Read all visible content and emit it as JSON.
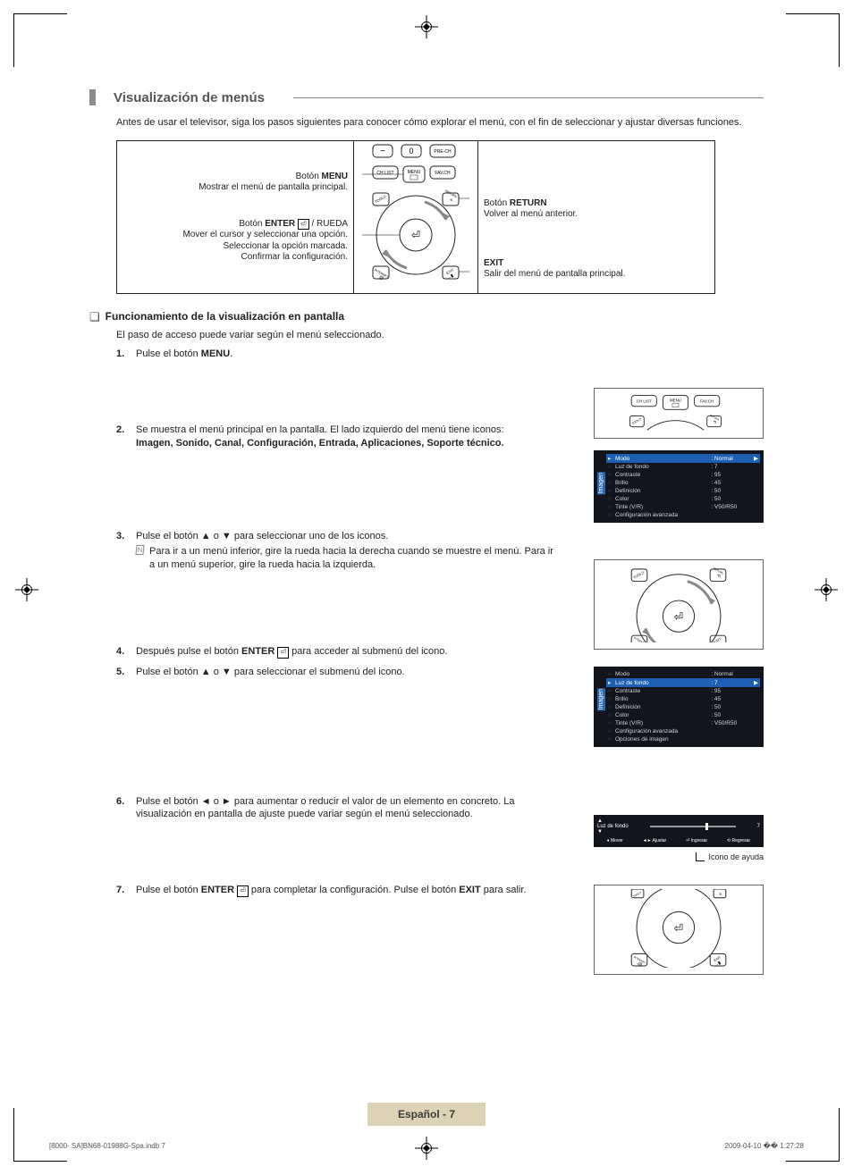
{
  "colors": {
    "accent_bar": "#8a8c8e",
    "page_label_bg": "#dcd2b5",
    "osd_bg": "#12161c",
    "osd_highlight": "#1d5fb3"
  },
  "header": {
    "title": "Visualización de menús",
    "intro": "Antes de usar el televisor, siga los pasos siguientes para conocer cómo explorar el menú, con el fin de seleccionar y ajustar diversas funciones."
  },
  "remote_diagram": {
    "left": {
      "menu": {
        "label": "Botón",
        "bold": "MENU",
        "desc": "Mostrar el menú de pantalla principal."
      },
      "enter": {
        "label_prefix": "Botón",
        "bold": "ENTER",
        "suffix": " / RUEDA",
        "desc1": "Mover el cursor y seleccionar una opción.",
        "desc2": "Seleccionar la opción marcada.",
        "desc3": "Confirmar la configuración."
      }
    },
    "right": {
      "ret": {
        "label_prefix": "Botón",
        "bold": "RETURN",
        "desc": "Volver al menú anterior."
      },
      "exit": {
        "bold": "EXIT",
        "desc": "Salir del menú de pantalla principal."
      }
    },
    "buttons": {
      "minus": "−",
      "zero": "0",
      "prech": "PRE-CH",
      "chlist": "CH LIST",
      "menu": "MENU",
      "favch": "FAV.CH",
      "tools": "TOOLS",
      "return": "RETURN",
      "internet": "INTERNET",
      "exit": "EXIT",
      "enter": "⏎"
    }
  },
  "subsection": {
    "title": "Funcionamiento de la visualización en pantalla",
    "subtitle": "El paso de acceso puede variar según el menú seleccionado."
  },
  "steps": {
    "s1": {
      "num": "1.",
      "text_a": "Pulse el botón ",
      "bold": "MENU",
      "text_b": "."
    },
    "s2": {
      "num": "2.",
      "text": "Se muestra el menú principal en la pantalla. El lado izquierdo del menú tiene iconos:",
      "bold": "Imagen, Sonido, Canal, Configuración, Entrada, Aplicaciones, Soporte técnico."
    },
    "s3": {
      "num": "3.",
      "text": "Pulse el botón ▲ o ▼ para seleccionar uno de los iconos.",
      "note": "Para ir a un menú inferior, gire la rueda hacia la derecha cuando se muestre el menú. Para ir a un menú superior, gire la rueda hacia la izquierda."
    },
    "s4": {
      "num": "4.",
      "text_a": "Después pulse el botón ",
      "bold": "ENTER",
      "text_b": " para acceder al submenú del icono."
    },
    "s5": {
      "num": "5.",
      "text": "Pulse el botón ▲ o ▼ para seleccionar el submenú del icono."
    },
    "s6": {
      "num": "6.",
      "text": "Pulse el botón ◄ o ► para aumentar o reducir el valor de un elemento en concreto. La visualización en pantalla de ajuste puede variar según el menú seleccionado."
    },
    "s7": {
      "num": "7.",
      "text_a": "Pulse el botón ",
      "bold1": "ENTER",
      "text_b": " para completar la configuración. Pulse el botón ",
      "bold2": "EXIT",
      "text_c": " para salir."
    }
  },
  "osd1": {
    "tab": "Imagen",
    "rows": [
      {
        "k": "Modo",
        "v": ": Normal",
        "hl": true
      },
      {
        "k": "Luz de fondo",
        "v": ": 7"
      },
      {
        "k": "Contraste",
        "v": ": 95"
      },
      {
        "k": "Brillo",
        "v": ": 45"
      },
      {
        "k": "Definición",
        "v": ": 50"
      },
      {
        "k": "Color",
        "v": ": 50"
      },
      {
        "k": "Tinte (V/R)",
        "v": ": V50/R50"
      },
      {
        "k": "Configuración avanzada",
        "v": ""
      }
    ]
  },
  "osd2": {
    "tab": "Imagen",
    "rows": [
      {
        "k": "Modo",
        "v": ": Normal"
      },
      {
        "k": "Luz de fondo",
        "v": ": 7",
        "hl": true
      },
      {
        "k": "Contraste",
        "v": ": 95"
      },
      {
        "k": "Brillo",
        "v": ": 45"
      },
      {
        "k": "Definición",
        "v": ": 50"
      },
      {
        "k": "Color",
        "v": ": 50"
      },
      {
        "k": "Tinte (V/R)",
        "v": ": V50/R50"
      },
      {
        "k": "Configuración avanzada",
        "v": ""
      },
      {
        "k": "Opciones de imagen",
        "v": ""
      }
    ]
  },
  "slider_fig": {
    "label": "Luz de fondo",
    "value": "7",
    "thumb_pct": 65,
    "controls": {
      "mover": "Mover",
      "ajustar": "Ajustar",
      "ingresar": "Ingresar",
      "regresar": "Regresar"
    },
    "help_label": "Icono de ayuda"
  },
  "page_section_label": "Español - 7",
  "footer": {
    "left": "[8000- SA]BN68-01988G-Spa.indb   7",
    "right": "2009-04-10   �� 1:27:28"
  }
}
